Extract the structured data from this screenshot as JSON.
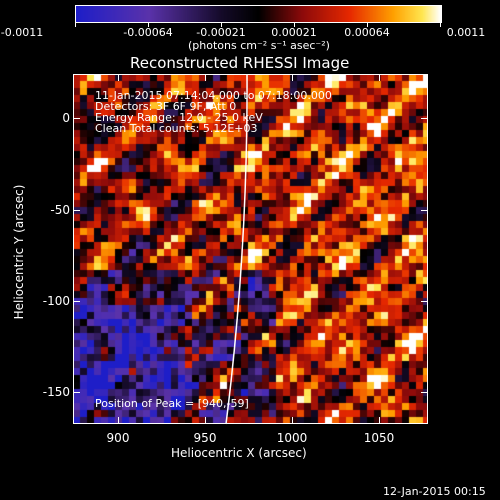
{
  "colorbar": {
    "tick_labels": [
      "-0.0011",
      "-0.00064",
      "-0.00021",
      "0.00021",
      "0.00064",
      "0.0011"
    ],
    "unit_label": "(photons cm⁻² s⁻¹ asec⁻²)"
  },
  "plot": {
    "title": "Reconstructed RHESSI Image",
    "info_lines": [
      "11-Jan-2015 07:14:04.000 to 07:18:00.000",
      "Detectors: 3F 6F 9F, Att 0",
      "Energy Range: 12.0 - 25.0 keV",
      "Clean    Total counts: 5.12E+03"
    ],
    "peak_text": "Position of Peak = [940,-59]",
    "xlabel": "Heliocentric X (arcsec)",
    "ylabel": "Heliocentric Y (arcsec)",
    "x_ticks": [
      "900",
      "950",
      "1000",
      "1050"
    ],
    "y_ticks": [
      "0",
      "-50",
      "-100",
      "-150"
    ]
  },
  "footer": {
    "timestamp": "12-Jan-2015 00:15"
  },
  "colors": {
    "background": "#000000",
    "limb": "#ffffff"
  }
}
